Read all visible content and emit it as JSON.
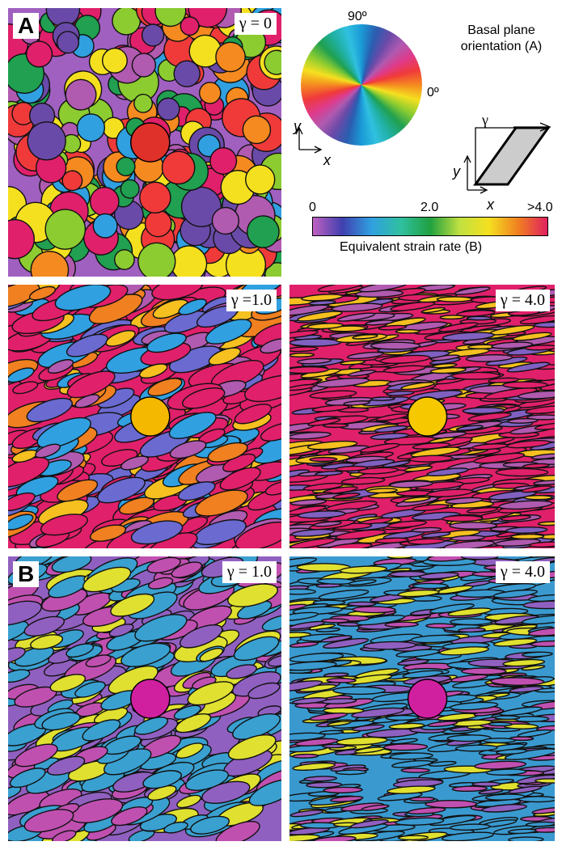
{
  "panel_a": {
    "label": "A",
    "gamma": "γ = 0"
  },
  "legend": {
    "wheel_top": "90º",
    "wheel_right": "0º",
    "title": "Basal plane orientation (A)",
    "axis_y": "y",
    "axis_x": "x",
    "shear_gamma": "γ",
    "shear_y": "y",
    "shear_x": "x",
    "colorbar_ticks": [
      "0",
      "2.0",
      ">4.0"
    ],
    "colorbar_title": "Equivalent strain rate (B)"
  },
  "panels": [
    {
      "gamma": "γ =1.0"
    },
    {
      "gamma": "γ = 4.0"
    },
    {
      "label": "B",
      "gamma": "γ = 1.0"
    },
    {
      "gamma": "γ = 4.0"
    }
  ]
}
